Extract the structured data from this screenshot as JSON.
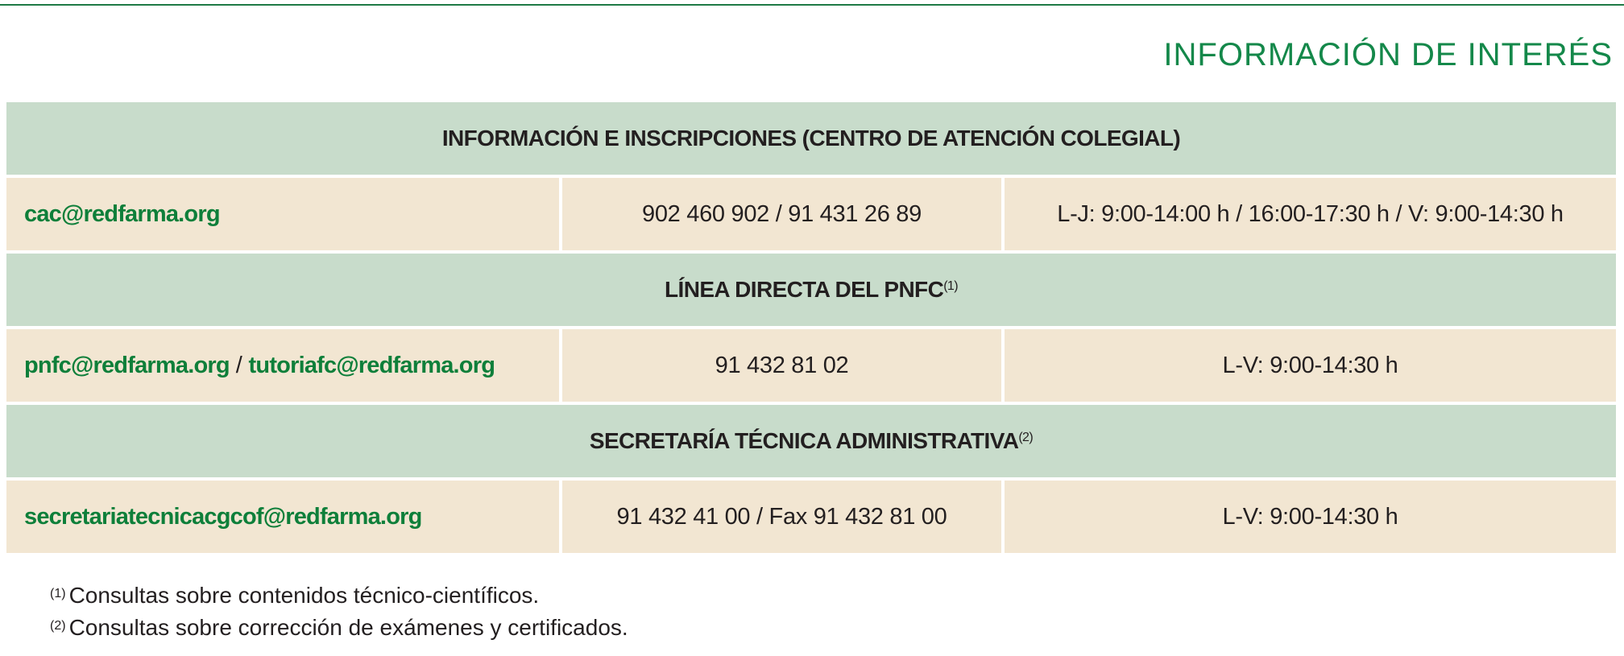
{
  "title": "INFORMACIÓN DE INTERÉS",
  "colors": {
    "accent_green": "#14884a",
    "header_bg": "#c8dccb",
    "row_bg": "#f2e6d2"
  },
  "sections": [
    {
      "heading": "INFORMACIÓN E INSCRIPCIONES (CENTRO DE ATENCIÓN COLEGIAL)",
      "note_ref": "",
      "emails": [
        "cac@redfarma.org"
      ],
      "phone": "902 460 902 / 91 431 26 89",
      "hours": "L-J: 9:00-14:00 h / 16:00-17:30 h / V: 9:00-14:30 h"
    },
    {
      "heading": "LÍNEA DIRECTA DEL PNFC",
      "note_ref": "(1)",
      "emails": [
        "pnfc@redfarma.org",
        "tutoriafc@redfarma.org"
      ],
      "email_separator": "/",
      "phone": "91 432 81 02",
      "hours": "L-V: 9:00-14:30 h"
    },
    {
      "heading": "SECRETARÍA TÉCNICA ADMINISTRATIVA",
      "note_ref": "(2)",
      "emails": [
        "secretariatecnicacgcof@redfarma.org"
      ],
      "phone": "91 432 41 00 / Fax 91 432 81 00",
      "hours": "L-V: 9:00-14:30 h"
    }
  ],
  "footnotes": [
    {
      "ref": "(1)",
      "text": "Consultas sobre contenidos técnico-científicos."
    },
    {
      "ref": "(2)",
      "text": "Consultas sobre corrección de exámenes y certificados."
    }
  ]
}
